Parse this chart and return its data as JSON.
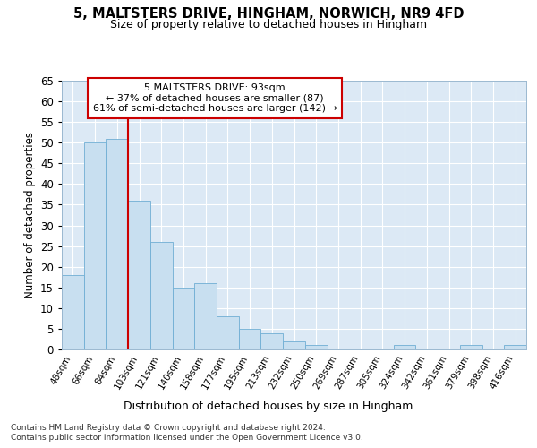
{
  "title1": "5, MALTSTERS DRIVE, HINGHAM, NORWICH, NR9 4FD",
  "title2": "Size of property relative to detached houses in Hingham",
  "xlabel": "Distribution of detached houses by size in Hingham",
  "ylabel": "Number of detached properties",
  "categories": [
    "48sqm",
    "66sqm",
    "84sqm",
    "103sqm",
    "121sqm",
    "140sqm",
    "158sqm",
    "177sqm",
    "195sqm",
    "213sqm",
    "232sqm",
    "250sqm",
    "269sqm",
    "287sqm",
    "305sqm",
    "324sqm",
    "342sqm",
    "361sqm",
    "379sqm",
    "398sqm",
    "416sqm"
  ],
  "values": [
    18,
    50,
    51,
    36,
    26,
    15,
    16,
    8,
    5,
    4,
    2,
    1,
    0,
    0,
    0,
    1,
    0,
    0,
    1,
    0,
    1
  ],
  "bar_color": "#c8dff0",
  "bar_edge_color": "#6faed4",
  "vline_x": 2.5,
  "vline_color": "#cc0000",
  "annotation_text": "5 MALTSTERS DRIVE: 93sqm\n← 37% of detached houses are smaller (87)\n61% of semi-detached houses are larger (142) →",
  "annotation_box_color": "#cc0000",
  "ylim": [
    0,
    65
  ],
  "yticks": [
    0,
    5,
    10,
    15,
    20,
    25,
    30,
    35,
    40,
    45,
    50,
    55,
    60,
    65
  ],
  "footer1": "Contains HM Land Registry data © Crown copyright and database right 2024.",
  "footer2": "Contains public sector information licensed under the Open Government Licence v3.0.",
  "plot_bg_color": "#dce9f5",
  "fig_bg_color": "#ffffff"
}
